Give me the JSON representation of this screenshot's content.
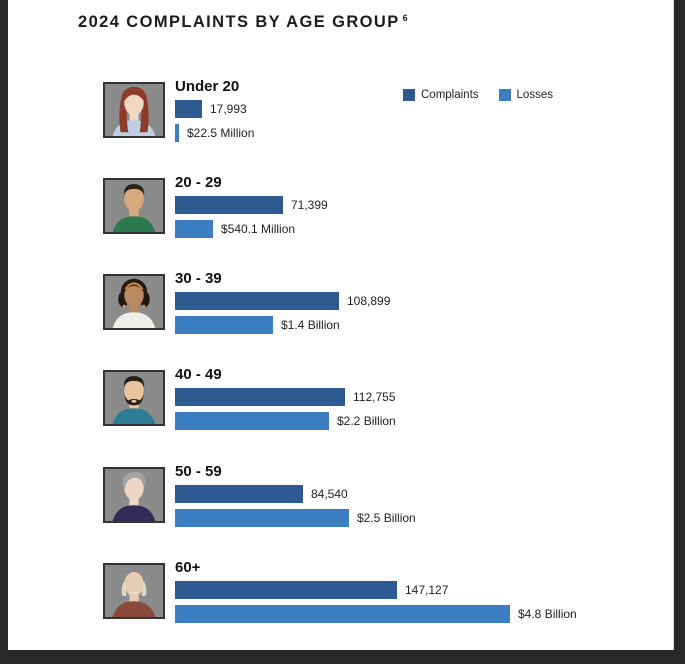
{
  "title": {
    "text": "2024 COMPLAINTS BY AGE GROUP",
    "footnote_marker": "6"
  },
  "legend": {
    "items": [
      {
        "label": "Complaints",
        "color": "#2e5a92"
      },
      {
        "label": "Losses",
        "color": "#3c7ec2"
      }
    ]
  },
  "colors": {
    "frame": "#282828",
    "page_bg": "#ffffff",
    "complaints_bar": "#2e5a92",
    "losses_bar": "#3c7ec2",
    "avatar_bg": "#8b8b8b",
    "avatar_border": "#343434",
    "text": "#1c1c1c"
  },
  "chart_data": {
    "type": "bar",
    "orientation": "horizontal",
    "title": "2024 COMPLAINTS BY AGE GROUP",
    "legend_position": "top-right",
    "grid": false,
    "categories": [
      "Under 20",
      "20 - 29",
      "30 - 39",
      "40 - 49",
      "50 - 59",
      "60+"
    ],
    "series": [
      {
        "name": "Complaints",
        "values": [
          17993,
          71399,
          108899,
          112755,
          84540,
          147127
        ],
        "labels": [
          "17,993",
          "71,399",
          "108,899",
          "112,755",
          "84,540",
          "147,127"
        ]
      },
      {
        "name": "Losses",
        "unit": "USD millions",
        "values": [
          22.5,
          540.1,
          1400,
          2200,
          2500,
          4800
        ],
        "labels": [
          "$22.5 Million",
          "$540.1 Million",
          "$1.4 Billion",
          "$2.2 Billion",
          "$2.5 Billion",
          "$4.8 Billion"
        ]
      }
    ],
    "axis_max_complaints": 147127,
    "axis_max_losses_musd": 4800
  },
  "avatars": [
    {
      "name": "avatar-young-woman-red-hair",
      "style": "long-hair",
      "skin": "#efd7c2",
      "hair": "#8e3b2a",
      "shirt": "#bcd2e2",
      "accent": "#bcd2e2"
    },
    {
      "name": "avatar-young-man-dark-hair",
      "style": "short-hair",
      "skin": "#d9a97e",
      "hair": "#2a211a",
      "shirt": "#2c7a50",
      "accent": "#2c7a50"
    },
    {
      "name": "avatar-woman-curly-hair",
      "style": "curly-hair",
      "skin": "#b9895f",
      "hair": "#201a16",
      "shirt": "#efeee8",
      "accent": "#c8803a"
    },
    {
      "name": "avatar-man-beard",
      "style": "beard",
      "skin": "#e9c49e",
      "hair": "#262019",
      "shirt": "#2c7d95",
      "accent": "#2c7d95"
    },
    {
      "name": "avatar-person-gray-hair",
      "style": "gray-swoosh",
      "skin": "#eed6c4",
      "hair": "#a3a3a3",
      "shirt": "#312c55",
      "accent": "#312c55"
    },
    {
      "name": "avatar-senior-man",
      "style": "bald-senior",
      "skin": "#e6cdb2",
      "hair": "#ded8c8",
      "shirt": "#8a4a3a",
      "accent": "#e8e2d4"
    }
  ]
}
